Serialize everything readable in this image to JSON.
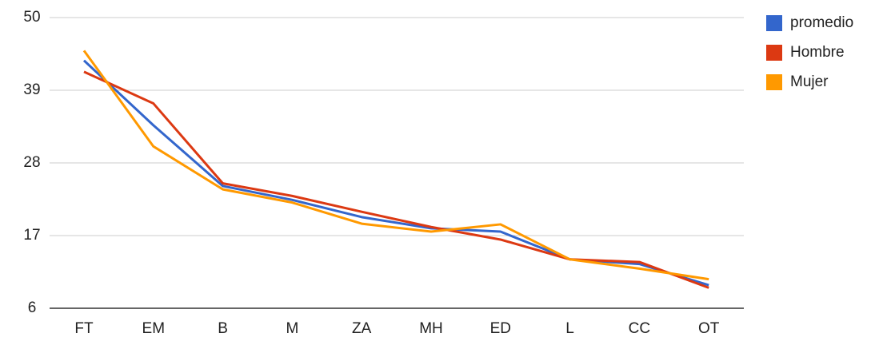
{
  "chart_data": {
    "type": "line",
    "categories": [
      "FT",
      "EM",
      "B",
      "M",
      "ZA",
      "MH",
      "ED",
      "L",
      "CC",
      "OT"
    ],
    "series": [
      {
        "name": "promedio",
        "color": "#3366cc",
        "values": [
          43.5,
          33.7,
          24.5,
          22.4,
          19.8,
          18.1,
          17.6,
          13.4,
          12.7,
          9.5
        ]
      },
      {
        "name": "Hombre",
        "color": "#dc3912",
        "values": [
          41.8,
          37,
          24.9,
          23,
          20.6,
          18.3,
          16.4,
          13.4,
          13,
          9.1
        ]
      },
      {
        "name": "Mujer",
        "color": "#ff9900",
        "values": [
          45,
          30.5,
          24,
          22,
          18.8,
          17.6,
          18.7,
          13.4,
          12,
          10.4
        ]
      }
    ],
    "ylim": [
      6,
      50
    ],
    "yticks": [
      6,
      17,
      28,
      39,
      50
    ],
    "grid": true,
    "legend": "right"
  }
}
